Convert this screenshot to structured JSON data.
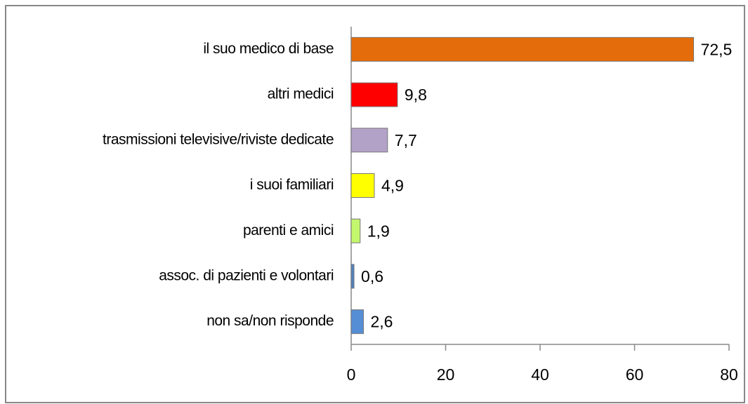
{
  "chart_data": {
    "type": "barh",
    "categories": [
      "il suo medico di base",
      "altri medici",
      "trasmissioni televisive/riviste dedicate",
      "i suoi familiari",
      "parenti e amici",
      "assoc. di pazienti e volontari",
      "non sa/non risponde"
    ],
    "values": [
      72.5,
      9.8,
      7.7,
      4.9,
      1.9,
      0.6,
      2.6
    ],
    "value_labels": [
      "72,5",
      "9,8",
      "7,7",
      "4,9",
      "1,9",
      "0,6",
      "2,6"
    ],
    "colors": [
      "#e46c0a",
      "#ff0000",
      "#b3a2c7",
      "#ffff00",
      "#c3f76e",
      "#4f81bd",
      "#558ed5"
    ],
    "xlim": [
      0,
      80
    ],
    "xticks": [
      0,
      20,
      40,
      60,
      80
    ]
  }
}
